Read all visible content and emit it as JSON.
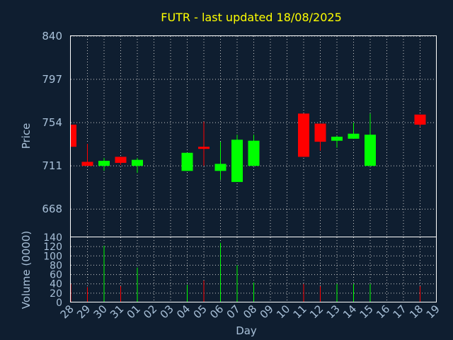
{
  "chart_data": {
    "type": "candlestick",
    "title": "FUTR - last updated 18/08/2025",
    "xlabel": "Day",
    "ylabel_price": "Price",
    "ylabel_volume": "Volume (0000)",
    "x_ticks": [
      "28",
      "29",
      "30",
      "31",
      "01",
      "02",
      "03",
      "04",
      "05",
      "06",
      "07",
      "08",
      "09",
      "10",
      "11",
      "12",
      "13",
      "14",
      "15",
      "16",
      "17",
      "18",
      "19"
    ],
    "price_ylim": [
      640,
      840
    ],
    "price_yticks": [
      840,
      797,
      754,
      711,
      668
    ],
    "volume_ylim": [
      0,
      140
    ],
    "volume_yticks": [
      140,
      120,
      100,
      80,
      60,
      40,
      20,
      0
    ],
    "up_color": "#00ff00",
    "down_color": "#ff0000",
    "candles": [
      {
        "day": "28",
        "open": 752,
        "high": 752,
        "low": 730,
        "close": 730,
        "volume": 40
      },
      {
        "day": "29",
        "open": 715,
        "high": 733,
        "low": 711,
        "close": 711,
        "volume": 33
      },
      {
        "day": "30",
        "open": 711,
        "high": 719,
        "low": 706,
        "close": 716,
        "volume": 122
      },
      {
        "day": "31",
        "open": 720,
        "high": 720,
        "low": 712,
        "close": 714,
        "volume": 35
      },
      {
        "day": "01",
        "open": 711,
        "high": 719,
        "low": 704,
        "close": 717,
        "volume": 75
      },
      {
        "day": "04",
        "open": 706,
        "high": 724,
        "low": 706,
        "close": 724,
        "volume": 38
      },
      {
        "day": "05",
        "open": 730,
        "high": 755,
        "low": 711,
        "close": 729,
        "volume": 47
      },
      {
        "day": "06",
        "open": 706,
        "high": 735,
        "low": 697,
        "close": 713,
        "volume": 128
      },
      {
        "day": "07",
        "open": 695,
        "high": 742,
        "low": 695,
        "close": 737,
        "volume": 80
      },
      {
        "day": "08",
        "open": 711,
        "high": 742,
        "low": 711,
        "close": 736,
        "volume": 43
      },
      {
        "day": "11",
        "open": 763,
        "high": 763,
        "low": 720,
        "close": 720,
        "volume": 40
      },
      {
        "day": "12",
        "open": 753,
        "high": 753,
        "low": 726,
        "close": 735,
        "volume": 35
      },
      {
        "day": "13",
        "open": 736,
        "high": 741,
        "low": 729,
        "close": 740,
        "volume": 40
      },
      {
        "day": "14",
        "open": 738,
        "high": 754,
        "low": 738,
        "close": 743,
        "volume": 40
      },
      {
        "day": "15",
        "open": 711,
        "high": 763,
        "low": 711,
        "close": 742,
        "volume": 40
      },
      {
        "day": "18",
        "open": 762,
        "high": 762,
        "low": 750,
        "close": 752,
        "volume": 35
      }
    ]
  }
}
